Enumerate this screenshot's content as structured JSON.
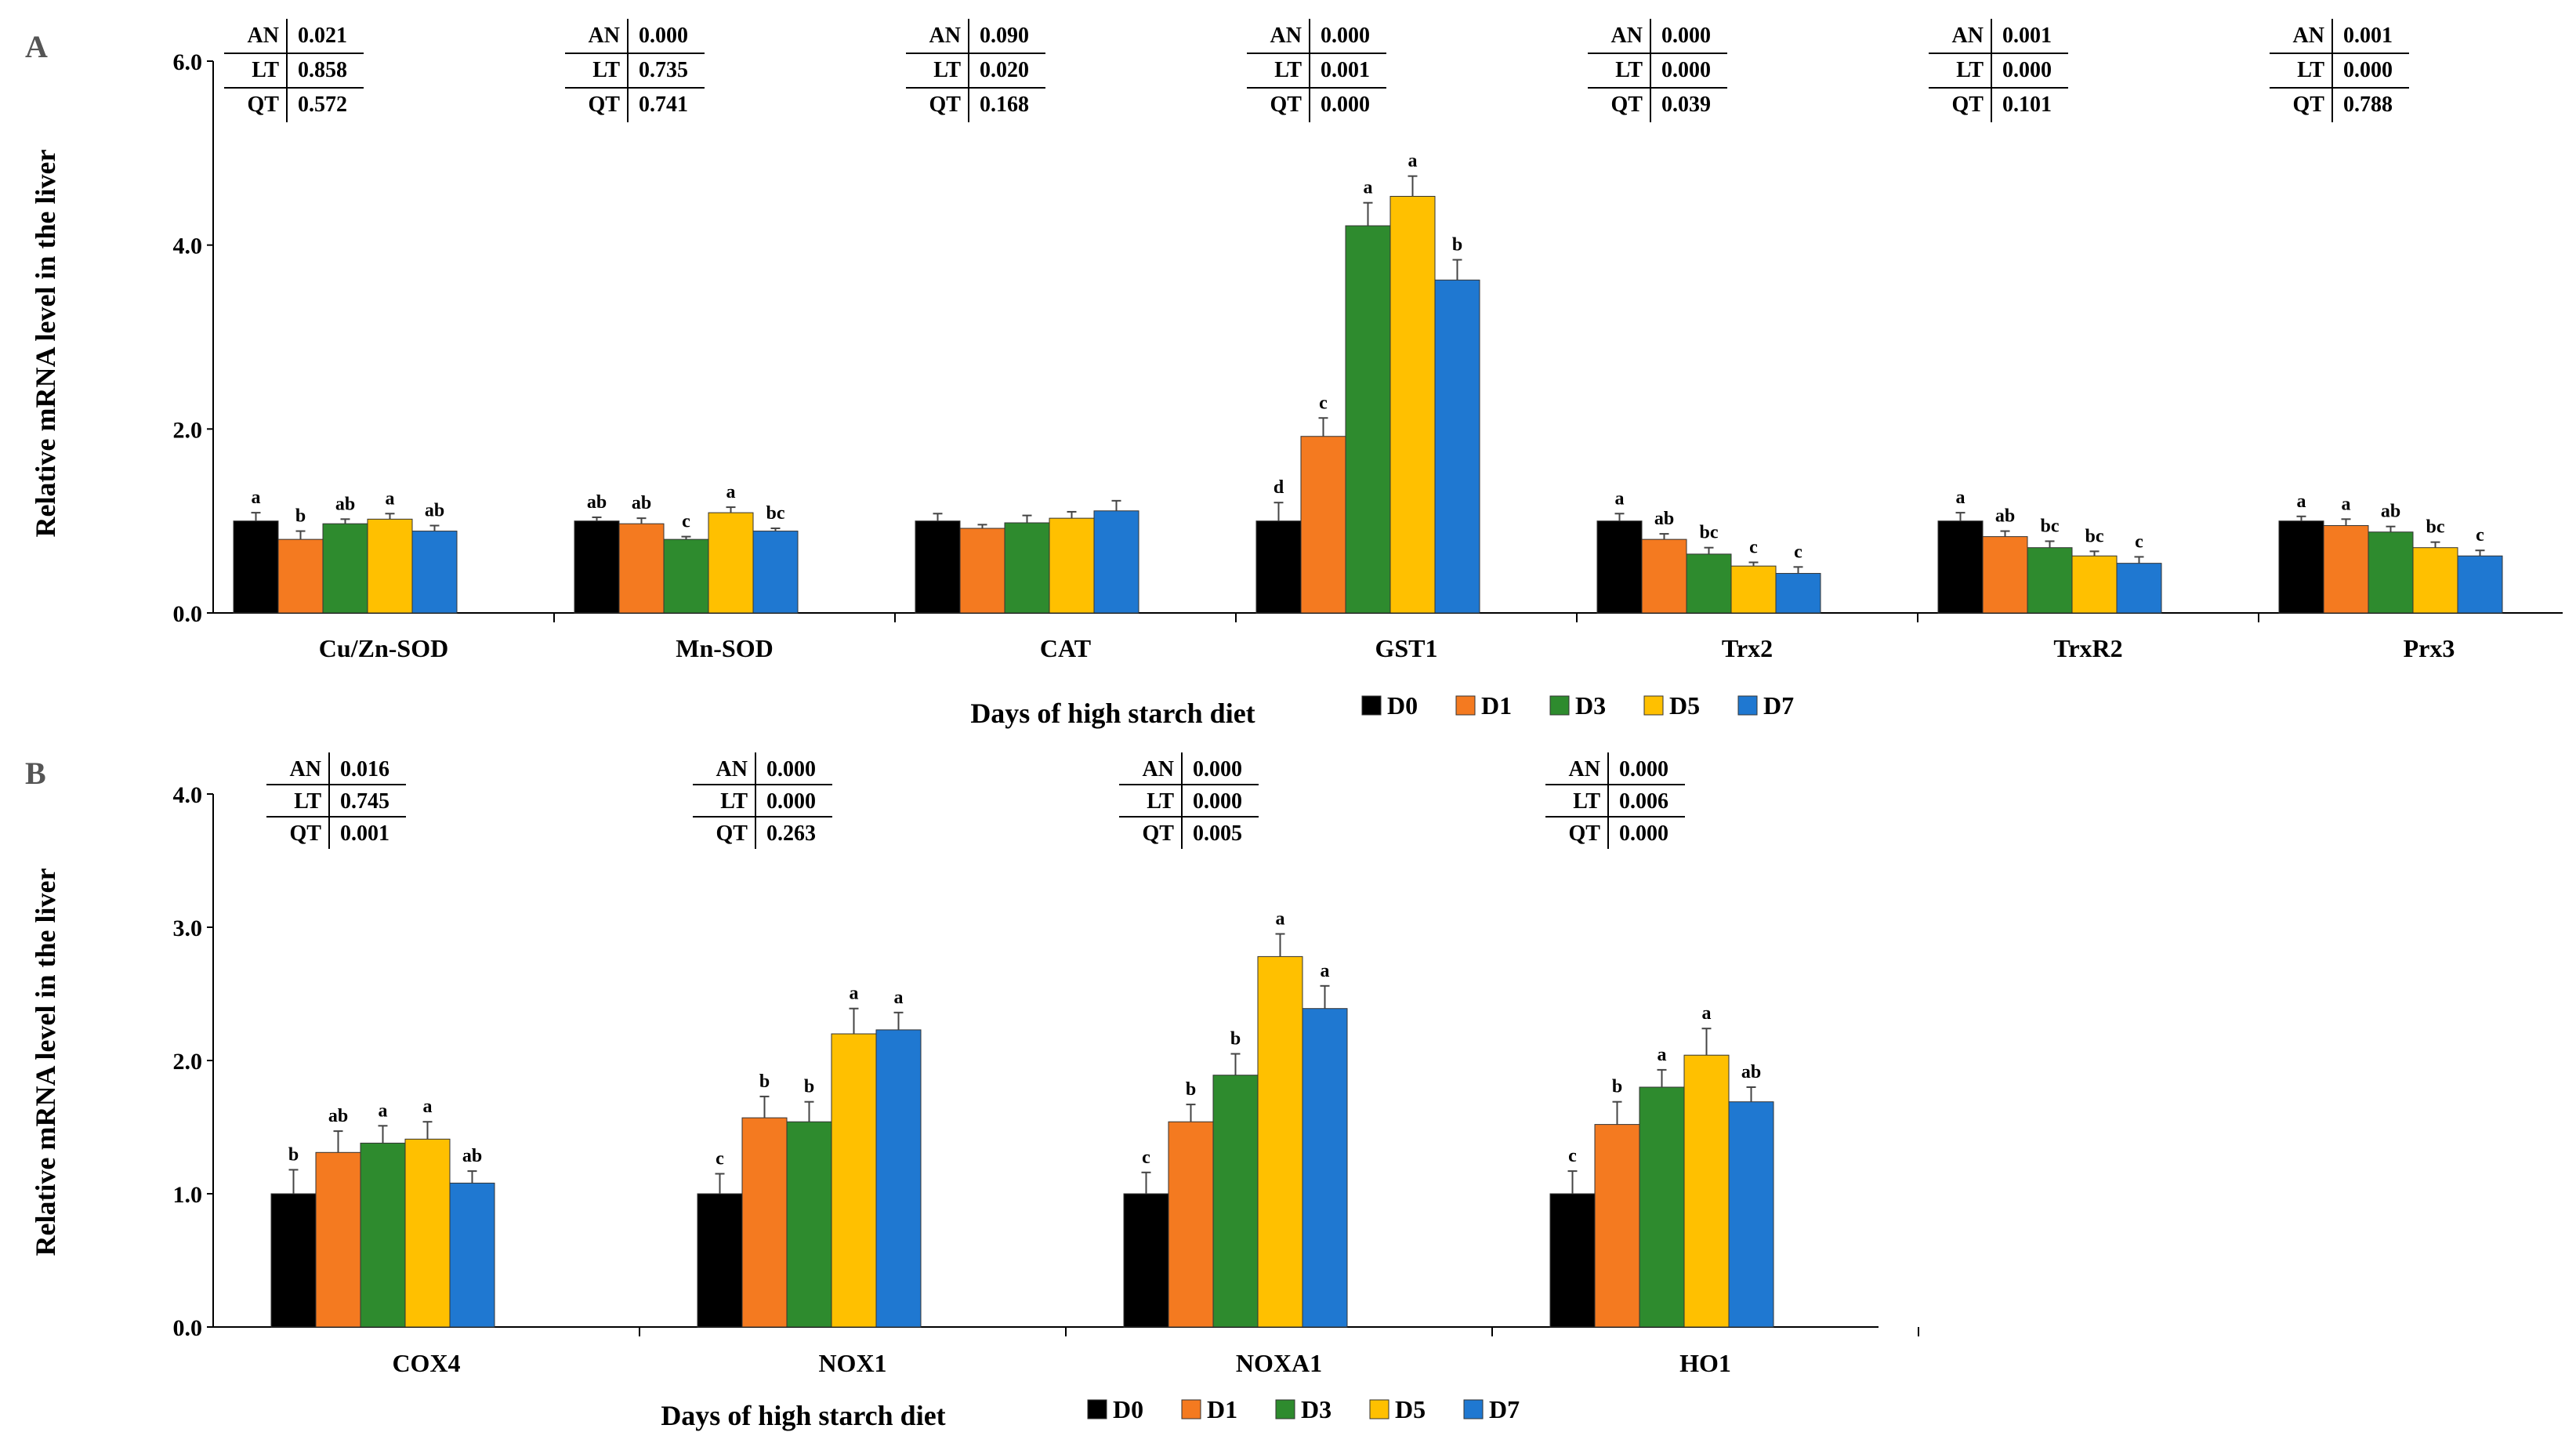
{
  "panels": [
    {
      "letter": "A",
      "ylabel": "Relative mRNA level  in the liver",
      "xlabel": "Days of high starch diet",
      "yticks": [
        "0.0",
        "2.0",
        "4.0",
        "6.0"
      ]
    },
    {
      "letter": "B",
      "ylabel": "Relative mRNA level in the liver",
      "xlabel": "Days of high starch diet",
      "yticks": [
        "0.0",
        "1.0",
        "2.0",
        "3.0",
        "4.0"
      ]
    }
  ],
  "legend": [
    {
      "name": "D0",
      "color": "#000000"
    },
    {
      "name": "D1",
      "color": "#f47a20"
    },
    {
      "name": "D3",
      "color": "#2e8b2e"
    },
    {
      "name": "D5",
      "color": "#ffc000"
    },
    {
      "name": "D7",
      "color": "#1f78d1"
    }
  ],
  "chart_data": [
    {
      "type": "bar",
      "panel": "A",
      "ylabel": "Relative mRNA level  in the liver",
      "xlabel": "Days of high starch diet",
      "ylim": [
        0,
        6
      ],
      "series_names": [
        "D0",
        "D1",
        "D3",
        "D5",
        "D7"
      ],
      "groups": [
        {
          "name": "Cu/Zn-SOD",
          "values": [
            1.0,
            0.8,
            0.97,
            1.02,
            0.89
          ],
          "errors": [
            0.09,
            0.09,
            0.05,
            0.06,
            0.06
          ],
          "letters": [
            "a",
            "b",
            "ab",
            "a",
            "ab"
          ],
          "stats": {
            "AN": "0.021",
            "LT": "0.858",
            "QT": "0.572"
          }
        },
        {
          "name": "Mn-SOD",
          "values": [
            1.0,
            0.97,
            0.8,
            1.09,
            0.89
          ],
          "errors": [
            0.04,
            0.06,
            0.03,
            0.06,
            0.03
          ],
          "letters": [
            "ab",
            "ab",
            "c",
            "a",
            "bc"
          ],
          "stats": {
            "AN": "0.000",
            "LT": "0.735",
            "QT": "0.741"
          }
        },
        {
          "name": "CAT",
          "values": [
            1.0,
            0.92,
            0.98,
            1.03,
            1.11
          ],
          "errors": [
            0.08,
            0.04,
            0.08,
            0.07,
            0.11
          ],
          "letters": [
            "",
            "",
            "",
            "",
            ""
          ],
          "stats": {
            "AN": "0.090",
            "LT": "0.020",
            "QT": "0.168"
          }
        },
        {
          "name": "GST1",
          "values": [
            1.0,
            1.92,
            4.21,
            4.53,
            3.62
          ],
          "errors": [
            0.2,
            0.2,
            0.25,
            0.22,
            0.22
          ],
          "letters": [
            "d",
            "c",
            "a",
            "a",
            "b"
          ],
          "stats": {
            "AN": "0.000",
            "LT": "0.001",
            "QT": "0.000"
          }
        },
        {
          "name": "Trx2",
          "values": [
            1.0,
            0.8,
            0.64,
            0.51,
            0.43
          ],
          "errors": [
            0.08,
            0.06,
            0.07,
            0.04,
            0.07
          ],
          "letters": [
            "a",
            "ab",
            "bc",
            "c",
            "c"
          ],
          "stats": {
            "AN": "0.000",
            "LT": "0.000",
            "QT": "0.039"
          }
        },
        {
          "name": "TrxR2",
          "values": [
            1.0,
            0.83,
            0.71,
            0.62,
            0.54
          ],
          "errors": [
            0.09,
            0.06,
            0.07,
            0.05,
            0.07
          ],
          "letters": [
            "a",
            "ab",
            "bc",
            "bc",
            "c"
          ],
          "stats": {
            "AN": "0.001",
            "LT": "0.000",
            "QT": "0.101"
          }
        },
        {
          "name": "Prx3",
          "values": [
            1.0,
            0.95,
            0.88,
            0.71,
            0.62
          ],
          "errors": [
            0.05,
            0.07,
            0.06,
            0.06,
            0.06
          ],
          "letters": [
            "a",
            "a",
            "ab",
            "bc",
            "c"
          ],
          "stats": {
            "AN": "0.001",
            "LT": "0.000",
            "QT": "0.788"
          }
        }
      ]
    },
    {
      "type": "bar",
      "panel": "B",
      "ylabel": "Relative mRNA level in the liver",
      "xlabel": "Days of high starch diet",
      "ylim": [
        0,
        4
      ],
      "series_names": [
        "D0",
        "D1",
        "D3",
        "D5",
        "D7"
      ],
      "groups": [
        {
          "name": "COX4",
          "values": [
            1.0,
            1.31,
            1.38,
            1.41,
            1.08
          ],
          "errors": [
            0.18,
            0.16,
            0.13,
            0.13,
            0.09
          ],
          "letters": [
            "b",
            "ab",
            "a",
            "a",
            "ab"
          ],
          "stats": {
            "AN": "0.016",
            "LT": "0.745",
            "QT": "0.001"
          }
        },
        {
          "name": "NOX1",
          "values": [
            1.0,
            1.57,
            1.54,
            2.2,
            2.23
          ],
          "errors": [
            0.15,
            0.16,
            0.15,
            0.19,
            0.13
          ],
          "letters": [
            "c",
            "b",
            "b",
            "a",
            "a"
          ],
          "stats": {
            "AN": "0.000",
            "LT": "0.000",
            "QT": "0.263"
          }
        },
        {
          "name": "NOXA1",
          "values": [
            1.0,
            1.54,
            1.89,
            2.78,
            2.39
          ],
          "errors": [
            0.16,
            0.13,
            0.16,
            0.17,
            0.17
          ],
          "letters": [
            "c",
            "b",
            "b",
            "a",
            "a"
          ],
          "stats": {
            "AN": "0.000",
            "LT": "0.000",
            "QT": "0.005"
          }
        },
        {
          "name": "HO1",
          "values": [
            1.0,
            1.52,
            1.8,
            2.04,
            1.69
          ],
          "errors": [
            0.17,
            0.17,
            0.13,
            0.2,
            0.11
          ],
          "letters": [
            "c",
            "b",
            "a",
            "a",
            "ab"
          ],
          "stats": {
            "AN": "0.000",
            "LT": "0.006",
            "QT": "0.000"
          }
        }
      ]
    }
  ]
}
